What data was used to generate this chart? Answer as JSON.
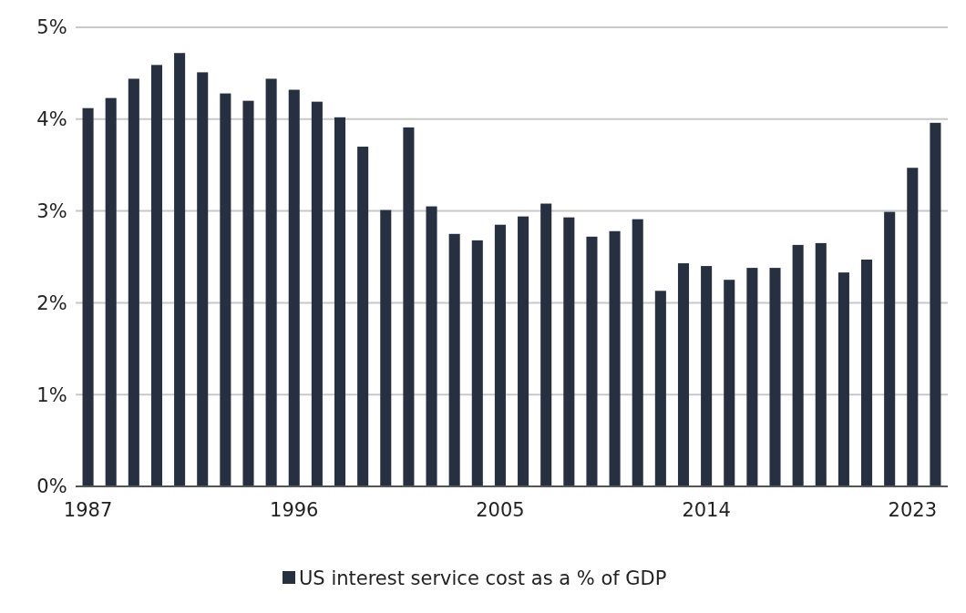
{
  "chart_data": {
    "type": "bar",
    "categories": [
      "1987",
      null,
      null,
      null,
      null,
      null,
      null,
      null,
      null,
      "1996",
      null,
      null,
      null,
      null,
      null,
      null,
      null,
      null,
      "2005",
      null,
      null,
      null,
      null,
      null,
      null,
      null,
      null,
      "2014",
      null,
      null,
      null,
      null,
      null,
      null,
      null,
      null,
      "2023",
      null
    ],
    "series": [
      {
        "name": "US interest service cost as a % of GDP",
        "color": "#263040",
        "values": [
          4.12,
          4.23,
          4.44,
          4.59,
          4.72,
          4.51,
          4.28,
          4.2,
          4.44,
          4.32,
          4.19,
          4.02,
          3.7,
          3.01,
          3.91,
          3.05,
          2.75,
          2.68,
          2.85,
          2.94,
          3.08,
          2.93,
          2.72,
          2.78,
          2.91,
          2.13,
          2.43,
          2.4,
          2.25,
          2.38,
          2.38,
          2.63,
          2.65,
          2.33,
          2.47,
          2.99,
          3.47,
          3.96
        ]
      }
    ],
    "ylim": [
      0,
      5
    ],
    "yticks": [
      {
        "value": 0,
        "label": "0%"
      },
      {
        "value": 1,
        "label": "1%"
      },
      {
        "value": 2,
        "label": "2%"
      },
      {
        "value": 3,
        "label": "3%"
      },
      {
        "value": 4,
        "label": "4%"
      },
      {
        "value": 5,
        "label": "5%"
      }
    ],
    "grid": "y",
    "legend": "bottom"
  }
}
